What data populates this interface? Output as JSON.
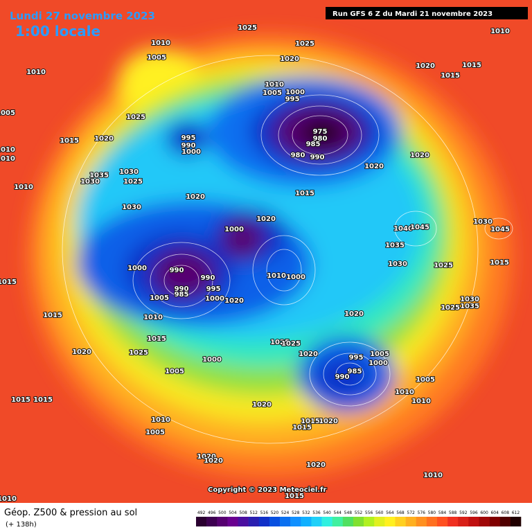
{
  "header": {
    "date": "Lundi 27 novembre 2023",
    "time": "1:00 locale",
    "run": "Run GFS 6 Z du Mardi 21 novembre 2023"
  },
  "map": {
    "copyright": "Copyright © 2023 Meteociel.fr",
    "labels": [
      1010,
      1005,
      1025,
      1025,
      1020,
      1010,
      1020,
      1015,
      1015,
      1010,
      1005,
      1025,
      1015,
      1020,
      995,
      990,
      1000,
      1010,
      1010,
      1035,
      1030,
      1030,
      1025,
      1010,
      1020,
      1030,
      1010,
      1005,
      1000,
      995,
      975,
      980,
      985,
      980,
      990,
      1020,
      1020,
      1015,
      1020,
      1000,
      1040,
      1045,
      1035,
      1030,
      1025,
      1030,
      1045,
      1015,
      1000,
      990,
      990,
      990,
      985,
      995,
      1005,
      1000,
      1020,
      1010,
      1000,
      1015,
      1015,
      1010,
      1015,
      1020,
      1030,
      1035,
      1025,
      1025,
      1025,
      1020,
      1020,
      1025,
      1000,
      995,
      985,
      990,
      1005,
      1000,
      1005,
      1005,
      1010,
      1010,
      1015,
      1015,
      1020,
      1010,
      1005,
      1015,
      1020,
      1015,
      1020,
      1020,
      1020,
      1010,
      1010,
      1015
    ]
  },
  "footer": {
    "title": "Géop. Z500 & pression au sol",
    "lead": "(+ 138h)",
    "colorbar": {
      "ticks": [
        492,
        496,
        500,
        504,
        508,
        512,
        516,
        520,
        524,
        528,
        532,
        536,
        540,
        544,
        548,
        552,
        556,
        560,
        564,
        568,
        572,
        576,
        580,
        584,
        588,
        592,
        596,
        600,
        604,
        608,
        612
      ],
      "colors": [
        "#2a0030",
        "#3d0050",
        "#560070",
        "#6a0090",
        "#4b0fa0",
        "#2a1fb0",
        "#1030c8",
        "#0850e0",
        "#0a70f0",
        "#1090ff",
        "#10b0ff",
        "#20d0f8",
        "#30f0e0",
        "#40f0a0",
        "#50e060",
        "#80e030",
        "#b0f020",
        "#e0f020",
        "#fff020",
        "#ffd020",
        "#ffb020",
        "#ff9020",
        "#ff7020",
        "#ff5020",
        "#f03020",
        "#d82018",
        "#c01010",
        "#a00808",
        "#800000",
        "#500000",
        "#200000"
      ]
    }
  }
}
